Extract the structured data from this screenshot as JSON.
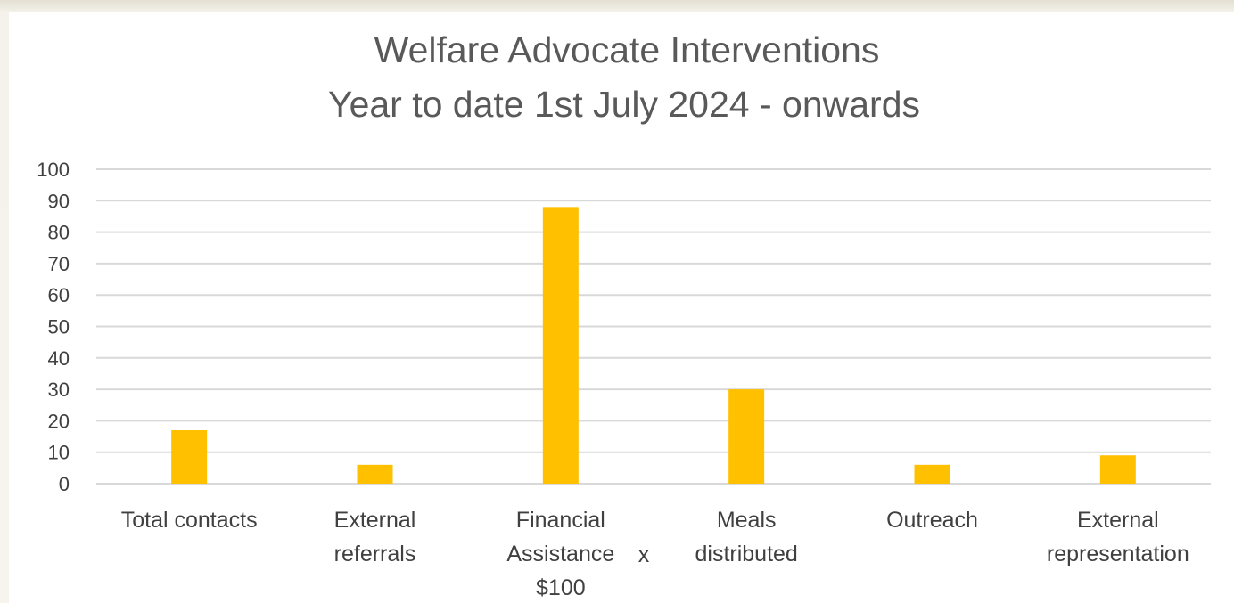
{
  "chart_data": {
    "type": "bar",
    "title": "Welfare Advocate Interventions",
    "subtitle": "Year to date 1st July 2024 - onwards",
    "categories": [
      [
        "Total contacts"
      ],
      [
        "External",
        "referrals"
      ],
      [
        "Financial",
        "Assistance",
        "$100"
      ],
      [
        "Meals",
        "distributed"
      ],
      [
        "Outreach"
      ],
      [
        "External",
        "representation"
      ]
    ],
    "category_annotation": "x",
    "values": [
      17,
      6,
      88,
      30,
      6,
      9
    ],
    "yticks": [
      0,
      10,
      20,
      30,
      40,
      50,
      60,
      70,
      80,
      90,
      100
    ],
    "ylim": [
      0,
      100
    ],
    "grid": true,
    "bar_color": "#ffc000"
  }
}
